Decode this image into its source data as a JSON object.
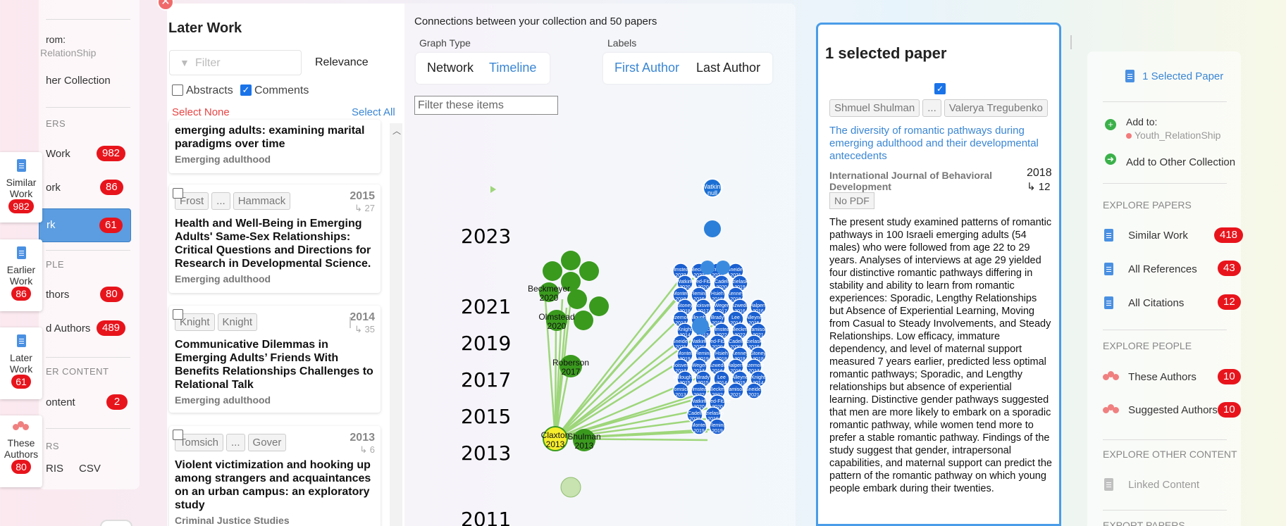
{
  "left_menu": {
    "from_label": "rom:",
    "collection_name": "RelationShip",
    "other_collection": "her Collection",
    "section_papers": "ERS",
    "items": [
      {
        "label": "Work",
        "count": "982"
      },
      {
        "label": "ork",
        "count": "86"
      },
      {
        "label": "rk",
        "count": "61"
      }
    ],
    "section_people": "PLE",
    "people": [
      {
        "label": "thors",
        "count": "80"
      },
      {
        "label": "d Authors",
        "count": "489"
      }
    ],
    "section_content": "ER CONTENT",
    "content": {
      "label": "ontent",
      "count": "2"
    },
    "section_export": "RS",
    "export_ris": "RIS",
    "export_csv": "CSV"
  },
  "side_tabs": [
    {
      "line1": "Similar",
      "line2": "Work",
      "count": "982"
    },
    {
      "line1": "Earlier",
      "line2": "Work",
      "count": "86"
    },
    {
      "line1": "Later",
      "line2": "Work",
      "count": "61"
    },
    {
      "line1": "These",
      "line2": "Authors",
      "count": "80"
    }
  ],
  "later_work": {
    "title": "Later Work",
    "filter_placeholder": "Filter",
    "sort": "Relevance",
    "abstracts_label": "Abstracts",
    "comments_label": "Comments",
    "select_none": "Select None",
    "select_all": "Select All",
    "cards": [
      {
        "title": "emerging adults: examining marital paradigms over time",
        "journal": "Emerging adulthood"
      },
      {
        "first": "Frost",
        "ellipsis": "...",
        "last": "Hammack",
        "year": "2015",
        "cites": "↳ 27",
        "title": "Health and Well-Being in Emerging Adults' Same-Sex Relationships: Critical Questions and Directions for Research in Developmental Science.",
        "journal": "Emerging adulthood"
      },
      {
        "first": "Knight",
        "last": "Knight",
        "year": "2014",
        "cites": "↳ 35",
        "title": "Communicative Dilemmas in Emerging Adults’ Friends With Benefits Relationships Challenges to Relational Talk",
        "journal": "Emerging adulthood"
      },
      {
        "first": "Tomsich",
        "ellipsis": "...",
        "last": "Gover",
        "year": "2013",
        "cites": "↳ 6",
        "title": "Violent victimization and hooking up among strangers and acquaintances on an urban campus: an exploratory study",
        "journal": "Criminal Justice Studies"
      }
    ]
  },
  "graph": {
    "header": "Connections between your collection and 50 papers",
    "graph_type_label": "Graph Type",
    "network": "Network",
    "timeline": "Timeline",
    "labels_label": "Labels",
    "first_author": "First Author",
    "last_author": "Last Author",
    "filter_placeholder": "Filter these items",
    "years": [
      "2023",
      "2021",
      "2019",
      "2017",
      "2015",
      "2013",
      "2011"
    ],
    "green_nodes": [
      {
        "name": "Beckmeyer",
        "year": "2020"
      },
      {
        "name": "Olmstead",
        "year": "2020"
      },
      {
        "name": "Roberson",
        "year": "2017"
      },
      {
        "name": "Claxton",
        "year": "2013"
      },
      {
        "name": "Shulman",
        "year": "2013"
      }
    ],
    "blue_top": {
      "name": "Watkins",
      "year": "null"
    },
    "blue_cluster_labels": [
      "Olmstead 2022",
      "Beckm 2022",
      "Jamison 2021",
      "Sneider 2021",
      "Watkins 2020",
      "Reed-Fitzke 2020",
      "Cadell 2020",
      "Szielasko 2019",
      "Monteil 2019",
      "Fleming 2019",
      "Hsieh 2018",
      "Kenney 2018",
      "Stoney 2018",
      "Boisvert 2017",
      "Weger 2017",
      "Szwedo 2016",
      "Halpern 2016",
      "Sizemore 2017",
      "Willoughby 2015",
      "Brady 2015",
      "Lee 2014",
      "Alleyne 2015",
      "Knight 2014",
      "Tomsich 2013"
    ]
  },
  "selected": {
    "title": "1 selected paper",
    "first_author": "Shmuel Shulman",
    "ellipsis": "...",
    "last_author": "Valerya Tregubenko",
    "paper_title": "The diversity of romantic pathways during emerging adulthood and their developmental antecedents",
    "journal": "International Journal of Behavioral Development",
    "year": "2018",
    "cites": "↳ 12",
    "pdf": "No PDF",
    "abstract": "The present study examined patterns of romantic pathways in 100 Israeli emerging adults (54 males) who were followed from age 22 to 29 years. Analyses of interviews at age 29 yielded four distinctive romantic pathways differing in stability and ability to learn from romantic experiences: Sporadic, Lengthy Relationships but Absence of Experiential Learning, Moving from Casual to Steady Involvements, and Steady Relationships. Low efficacy, immature dependency, and level of maternal support measured 7 years earlier, predicted less optimal romantic pathways; Sporadic, and Lengthy relationships but absence of experiential learning. Distinctive gender pathways suggested that men are more likely to embark on a sporadic romantic pathway, while women tend more to prefer a stable romantic pathway. Findings of the study suggest that gender, intrapersonal capabilities, and maternal support can predict the pattern of the romantic pathway on which young people embark during their twenties."
  },
  "right_panel": {
    "selected_link": "1 Selected Paper",
    "add_to": "Add to:",
    "collection": "Youth_RelationShip",
    "add_other": "Add to Other Collection",
    "explore_papers": "EXPLORE PAPERS",
    "papers": [
      {
        "label": "Similar Work",
        "count": "418"
      },
      {
        "label": "All References",
        "count": "43"
      },
      {
        "label": "All Citations",
        "count": "12"
      }
    ],
    "explore_people": "EXPLORE PEOPLE",
    "people": [
      {
        "label": "These Authors",
        "count": "10"
      },
      {
        "label": "Suggested Authors",
        "count": "10"
      }
    ],
    "explore_other": "EXPLORE OTHER CONTENT",
    "linked": "Linked Content",
    "export": "EXPORT PAPERS"
  },
  "colors": {
    "accent": "#4a90e2",
    "badge": "#e8141c",
    "green_node": "#3a9a1e",
    "blue_node": "#1a6fd4",
    "edge": "#9ed67a"
  }
}
